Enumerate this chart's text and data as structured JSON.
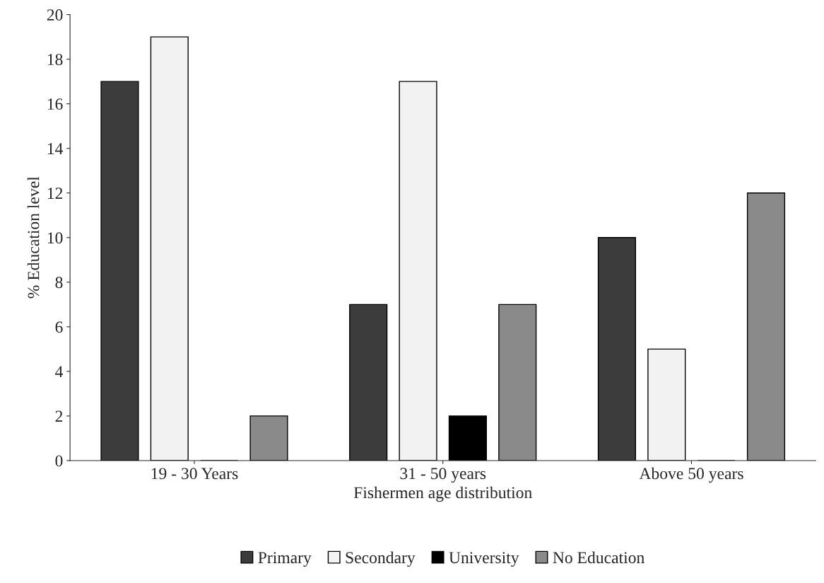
{
  "chart_data": {
    "type": "bar",
    "xlabel": "Fishermen age distribution",
    "ylabel": "% Education level",
    "categories": [
      "19 - 30 Years",
      "31 - 50 years",
      "Above 50 years"
    ],
    "series": [
      {
        "name": "Primary",
        "color": "#3c3c3c",
        "values": [
          17,
          7,
          10
        ]
      },
      {
        "name": "Secondary",
        "color": "#f2f2f2",
        "values": [
          19,
          17,
          5
        ]
      },
      {
        "name": "University",
        "color": "#000000",
        "values": [
          0,
          2,
          0
        ]
      },
      {
        "name": "No Education",
        "color": "#8a8a8a",
        "values": [
          2,
          7,
          12
        ]
      }
    ],
    "ylim": [
      0,
      20
    ],
    "yticks": [
      0,
      2,
      4,
      6,
      8,
      10,
      12,
      14,
      16,
      18,
      20
    ],
    "grid": false,
    "legend": "bottom"
  }
}
